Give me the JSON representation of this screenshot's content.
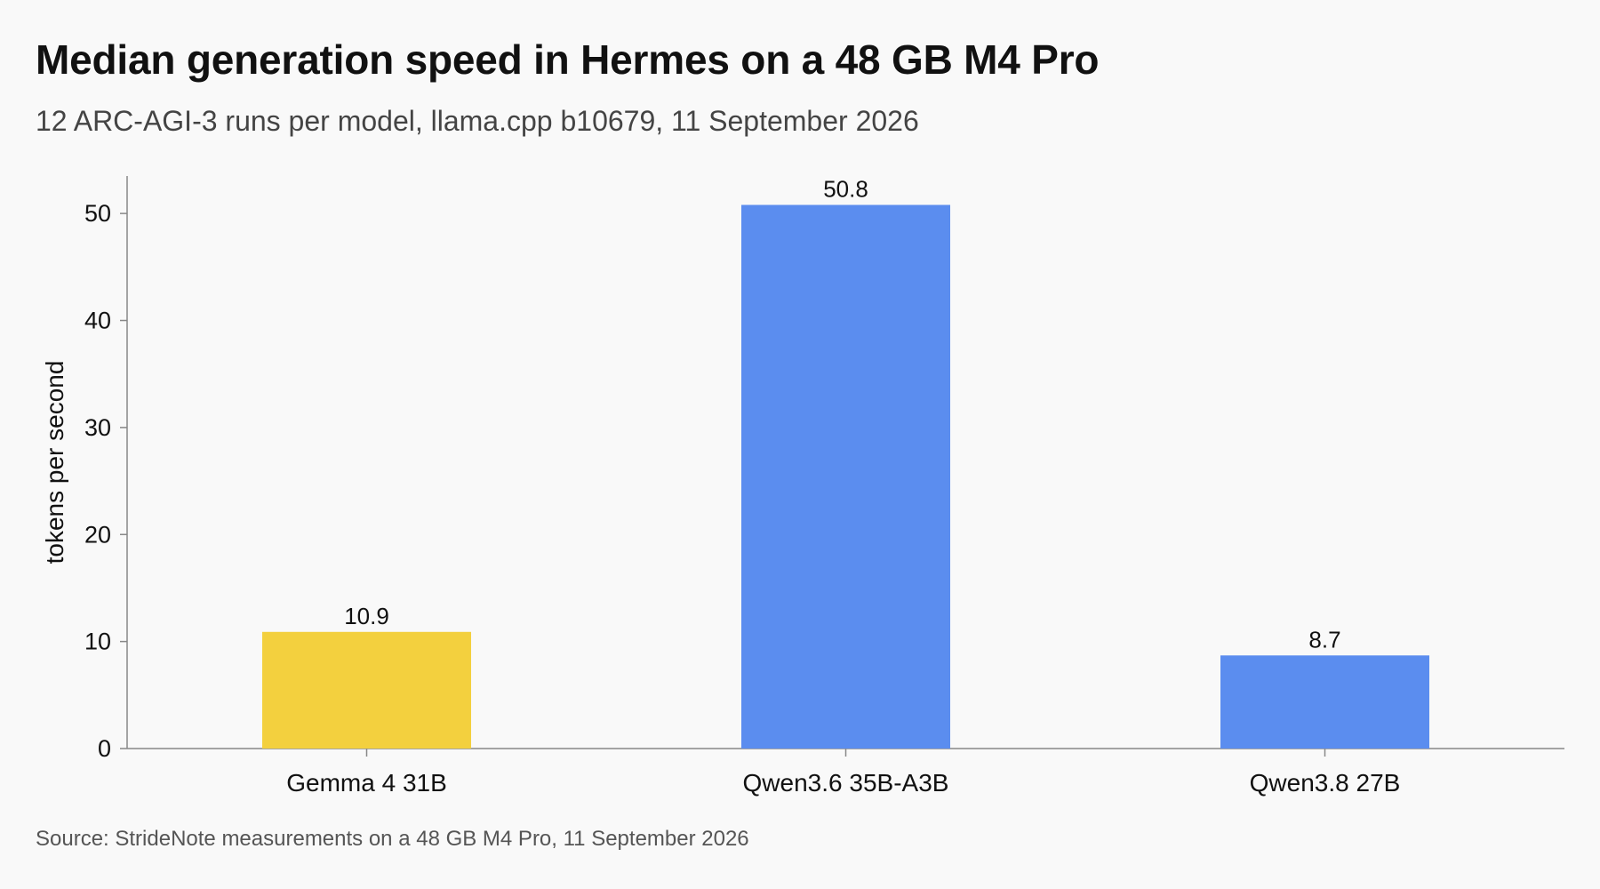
{
  "header": {
    "title": "Median generation speed in Hermes on a 48 GB M4 Pro",
    "subtitle": "12 ARC-AGI-3 runs per model, llama.cpp b10679, 11 September 2026"
  },
  "footer": {
    "source": "Source: StrideNote measurements on a 48 GB M4 Pro, 11 September 2026"
  },
  "chart_data": {
    "type": "bar",
    "title": "Median generation speed in Hermes on a 48 GB M4 Pro",
    "subtitle": "12 ARC-AGI-3 runs per model, llama.cpp b10679, 11 September 2026",
    "xlabel": "",
    "ylabel": "tokens per second",
    "categories": [
      "Gemma 4 31B",
      "Qwen3.6 35B-A3B",
      "Qwen3.8 27B"
    ],
    "values": [
      10.9,
      50.8,
      8.7
    ],
    "value_labels": [
      "10.9",
      "50.8",
      "8.7"
    ],
    "bar_colors": [
      "#f3d03e",
      "#5b8def",
      "#5b8def"
    ],
    "ylim": [
      0,
      53.5
    ],
    "yticks": [
      0,
      10,
      20,
      30,
      40,
      50
    ],
    "grid": false,
    "legend": "none",
    "source": "Source: StrideNote measurements on a 48 GB M4 Pro, 11 September 2026"
  }
}
